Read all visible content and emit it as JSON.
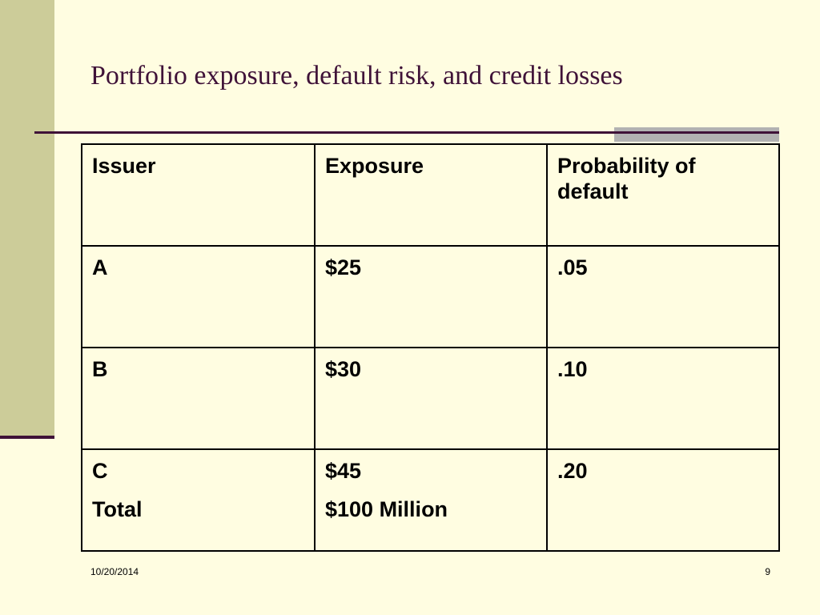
{
  "slide": {
    "title": "Portfolio exposure, default risk, and credit losses",
    "date": "10/20/2014",
    "page_number": "9"
  },
  "table": {
    "headers": [
      "Issuer",
      "Exposure",
      "Probability of default"
    ],
    "rows": [
      {
        "issuer": "A",
        "exposure": "$25",
        "probability": ".05"
      },
      {
        "issuer": "B",
        "exposure": "$30",
        "probability": ".10"
      },
      {
        "issuer": "C",
        "exposure": "$45",
        "probability": ".20"
      }
    ],
    "total": {
      "label": "Total",
      "exposure": "$100 Million"
    }
  },
  "colors": {
    "background": "#FFFDE1",
    "accent": "#3F1238",
    "band": "#CCCC99",
    "rule_accent": "#B2B2B2"
  }
}
